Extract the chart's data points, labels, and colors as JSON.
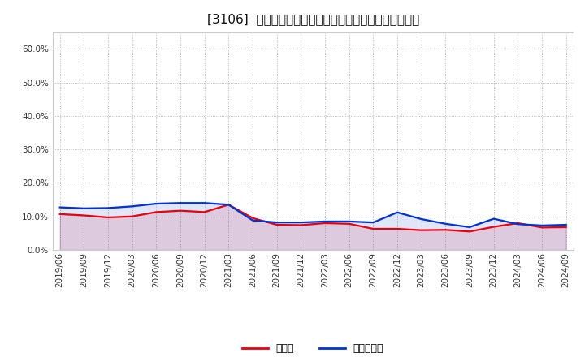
{
  "title": "[3106]  現預金、有利子負債の総資産に対する比率の推移",
  "x_labels": [
    "2019/06",
    "2019/09",
    "2019/12",
    "2020/03",
    "2020/06",
    "2020/09",
    "2020/12",
    "2021/03",
    "2021/06",
    "2021/09",
    "2021/12",
    "2022/03",
    "2022/06",
    "2022/09",
    "2022/12",
    "2023/03",
    "2023/06",
    "2023/09",
    "2023/12",
    "2024/03",
    "2024/06",
    "2024/09"
  ],
  "cash": [
    0.107,
    0.103,
    0.097,
    0.1,
    0.113,
    0.117,
    0.113,
    0.135,
    0.095,
    0.075,
    0.074,
    0.08,
    0.078,
    0.063,
    0.063,
    0.059,
    0.06,
    0.055,
    0.069,
    0.08,
    0.067,
    0.068
  ],
  "interest_bearing_debt": [
    0.127,
    0.124,
    0.125,
    0.13,
    0.138,
    0.14,
    0.14,
    0.135,
    0.088,
    0.082,
    0.082,
    0.085,
    0.085,
    0.082,
    0.112,
    0.092,
    0.078,
    0.068,
    0.093,
    0.077,
    0.073,
    0.075
  ],
  "cash_color": "#e8000d",
  "debt_color": "#0033cc",
  "background_color": "#ffffff",
  "grid_color": "#aaaaaa",
  "ylim": [
    0.0,
    0.65
  ],
  "yticks": [
    0.0,
    0.1,
    0.2,
    0.3,
    0.4,
    0.5,
    0.6
  ],
  "legend_cash": "現預金",
  "legend_debt": "有利子負債",
  "title_fontsize": 11,
  "tick_fontsize": 7.5,
  "legend_fontsize": 9
}
